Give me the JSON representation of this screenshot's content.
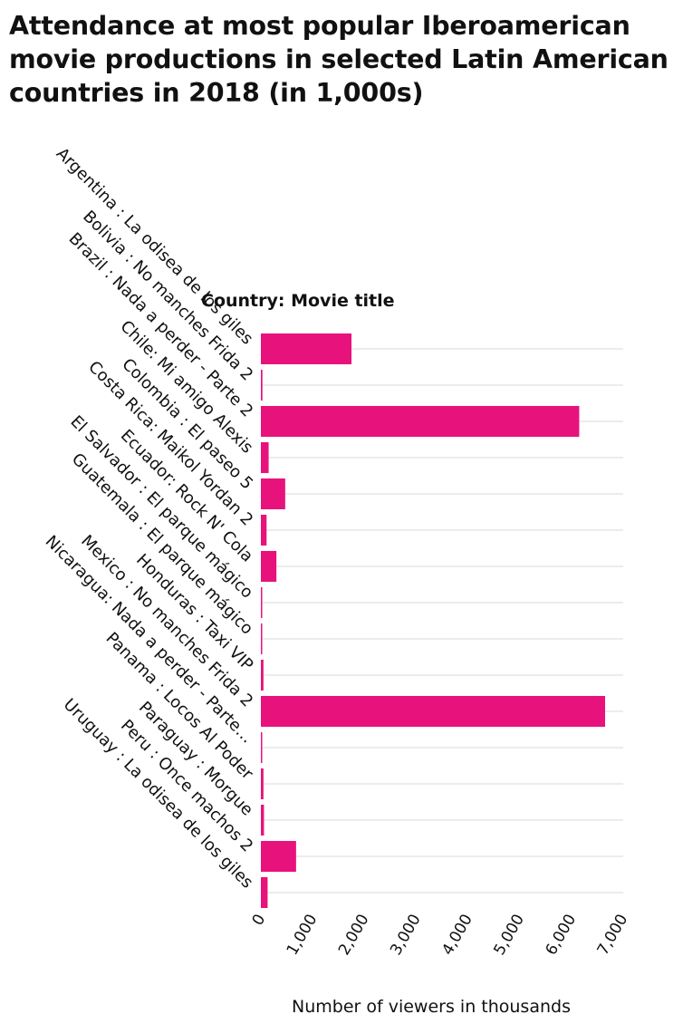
{
  "chart_data": {
    "type": "bar",
    "orientation": "horizontal",
    "title": "Attendance at most popular Iberoamerican movie productions in selected Latin American countries in 2018 (in 1,000s)",
    "ylabel": "Country: Movie title",
    "xlabel": "Number of viewers in thousands",
    "categories": [
      "Argentina : La odisea de los giles",
      "Bolivia : No manches Frida 2",
      "Brazil : Nada a perder - Parte 2",
      "Chile: Mi amigo Alexis",
      "Colombia : El paseo 5",
      "Costa Rica: Maikol Yordan 2",
      "Ecuador: Rock N' Cola",
      "El Salvador : El parque mágico",
      "Guatemala : El parque mágico",
      "Honduras : Taxi VIP",
      "Mexico : No manches Frida 2",
      "Nicaragua: Nada a perder - Parte…",
      "Panama : Locos Al Poder",
      "Paraguay : Morgue",
      "Peru : Once machos 2",
      "Uruguay : La odisea de los giles"
    ],
    "values": [
      1750,
      30,
      6150,
      150,
      470,
      110,
      300,
      15,
      20,
      50,
      6650,
      8,
      50,
      60,
      680,
      130
    ],
    "xlim": [
      0,
      7000
    ],
    "xticks": [
      0,
      1000,
      2000,
      3000,
      4000,
      5000,
      6000,
      7000
    ],
    "xtick_labels": [
      "0",
      "1,000",
      "2,000",
      "3,000",
      "4,000",
      "5,000",
      "6,000",
      "7,000"
    ],
    "grid": true,
    "bar_color": "#e8127c",
    "grid_color": "#d9d9d9"
  }
}
